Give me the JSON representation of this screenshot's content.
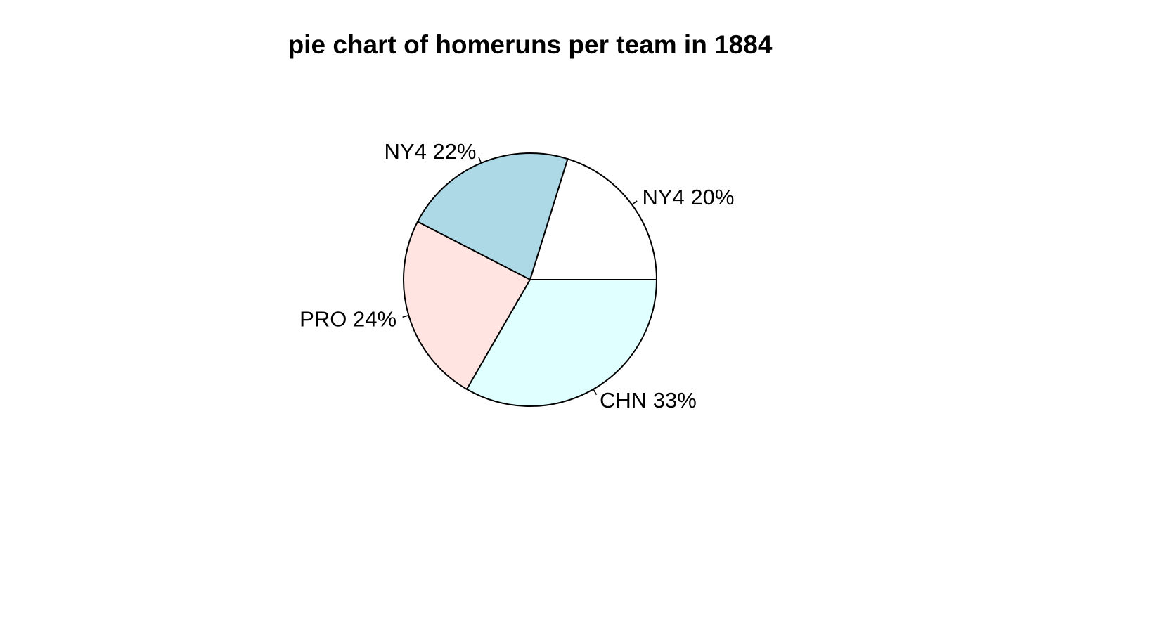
{
  "chart_data": {
    "type": "pie",
    "title": "pie chart of homeruns per team in 1884",
    "direction": "counterclockwise",
    "start": "3 o'clock",
    "slices": [
      {
        "label": "NY4 20%",
        "value": 20,
        "color": "#ffffff"
      },
      {
        "label": "NY4 22%",
        "value": 22,
        "color": "#add8e6"
      },
      {
        "label": "PRO 24%",
        "value": 24,
        "color": "#ffe4e1"
      },
      {
        "label": "CHN 33%",
        "value": 33,
        "color": "#e0ffff"
      }
    ]
  }
}
